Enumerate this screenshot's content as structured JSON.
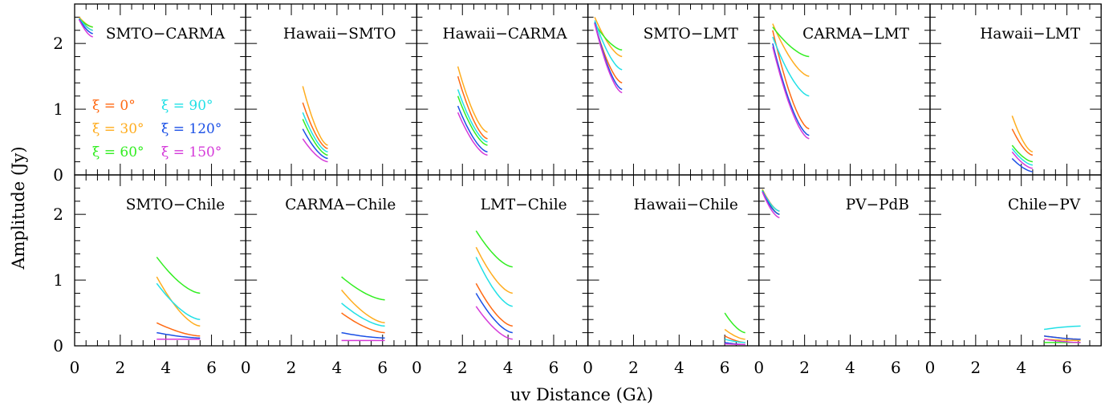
{
  "chart_data": {
    "type": "line",
    "xlabel": "uv Distance (Gλ)",
    "ylabel": "Amplitude (Jy)",
    "xlim": [
      0,
      7.5
    ],
    "ylim": [
      0,
      2.6
    ],
    "xticks": [
      "0",
      "2",
      "4",
      "6"
    ],
    "yticks": [
      "0",
      "1",
      "2"
    ],
    "legend": {
      "placement": "panel SMTO-CARMA, lower-left",
      "items": [
        {
          "label": "ξ = 0°",
          "color": "#ff6a13"
        },
        {
          "label": "ξ = 90°",
          "color": "#22e0e6"
        },
        {
          "label": "ξ = 30°",
          "color": "#ffad1f"
        },
        {
          "label": "ξ = 120°",
          "color": "#1b50e6"
        },
        {
          "label": "ξ = 60°",
          "color": "#33ee22"
        },
        {
          "label": "ξ = 150°",
          "color": "#d53ad9"
        }
      ]
    },
    "series_colors": [
      "#ff6a13",
      "#ffad1f",
      "#33ee22",
      "#22e0e6",
      "#1b50e6",
      "#d53ad9"
    ],
    "panels": [
      {
        "title": "SMTO−CARMA",
        "x_range": [
          0.2,
          0.8
        ],
        "start": [
          2.4,
          2.4,
          2.38,
          2.38,
          2.37,
          2.36
        ],
        "end": [
          2.2,
          2.25,
          2.25,
          2.2,
          2.15,
          2.1
        ]
      },
      {
        "title": "Hawaii−SMTO",
        "x_range": [
          2.5,
          3.6
        ],
        "start": [
          1.1,
          1.35,
          0.85,
          0.95,
          0.7,
          0.55
        ],
        "end": [
          0.4,
          0.45,
          0.3,
          0.35,
          0.25,
          0.2
        ]
      },
      {
        "title": "Hawaii−CARMA",
        "x_range": [
          1.8,
          3.1
        ],
        "start": [
          1.5,
          1.65,
          1.2,
          1.3,
          1.05,
          0.95
        ],
        "end": [
          0.55,
          0.65,
          0.45,
          0.5,
          0.35,
          0.3
        ]
      },
      {
        "title": "SMTO−LMT",
        "x_range": [
          0.3,
          1.5
        ],
        "start": [
          2.3,
          2.4,
          2.3,
          2.35,
          2.32,
          2.3
        ],
        "end": [
          1.4,
          1.8,
          1.9,
          1.6,
          1.3,
          1.25
        ]
      },
      {
        "title": "CARMA−LMT",
        "x_range": [
          0.6,
          2.2
        ],
        "start": [
          2.2,
          2.3,
          2.25,
          2.1,
          2.0,
          1.95
        ],
        "end": [
          0.7,
          1.5,
          1.8,
          1.2,
          0.6,
          0.55
        ]
      },
      {
        "title": "Hawaii−LMT",
        "x_range": [
          3.6,
          4.5
        ],
        "start": [
          0.7,
          0.9,
          0.45,
          0.4,
          0.25,
          0.35
        ],
        "end": [
          0.3,
          0.35,
          0.2,
          0.15,
          0.05,
          0.1
        ]
      },
      {
        "title": "SMTO−Chile",
        "x_range": [
          3.6,
          5.5
        ],
        "start": [
          0.35,
          1.05,
          1.35,
          0.95,
          0.2,
          0.1
        ],
        "end": [
          0.15,
          0.3,
          0.8,
          0.4,
          0.12,
          0.1
        ]
      },
      {
        "title": "CARMA−Chile",
        "x_range": [
          4.2,
          6.1
        ],
        "start": [
          0.5,
          0.85,
          1.05,
          0.65,
          0.2,
          0.08
        ],
        "end": [
          0.2,
          0.35,
          0.7,
          0.3,
          0.12,
          0.08
        ]
      },
      {
        "title": "LMT−Chile",
        "x_range": [
          2.6,
          4.2
        ],
        "start": [
          0.95,
          1.5,
          1.75,
          1.35,
          0.8,
          0.6
        ],
        "end": [
          0.3,
          0.8,
          1.2,
          0.6,
          0.2,
          0.1
        ]
      },
      {
        "title": "Hawaii−Chile",
        "x_range": [
          6.0,
          6.9
        ],
        "start": [
          0.15,
          0.25,
          0.5,
          0.1,
          0.05,
          0.03
        ],
        "end": [
          0.05,
          0.1,
          0.2,
          0.05,
          0.02,
          0.02
        ]
      },
      {
        "title": "PV−PdB",
        "x_range": [
          0.15,
          0.9
        ],
        "start": [
          2.38,
          2.38,
          2.37,
          2.36,
          2.35,
          2.34
        ],
        "end": [
          2.05,
          2.0,
          2.0,
          2.05,
          2.0,
          1.95
        ]
      },
      {
        "title": "Chile−PV",
        "x_range": [
          5.0,
          6.6
        ],
        "start": [
          0.15,
          0.1,
          0.05,
          0.25,
          0.15,
          0.1
        ],
        "end": [
          0.1,
          0.08,
          0.05,
          0.3,
          0.1,
          0.05
        ]
      }
    ]
  }
}
